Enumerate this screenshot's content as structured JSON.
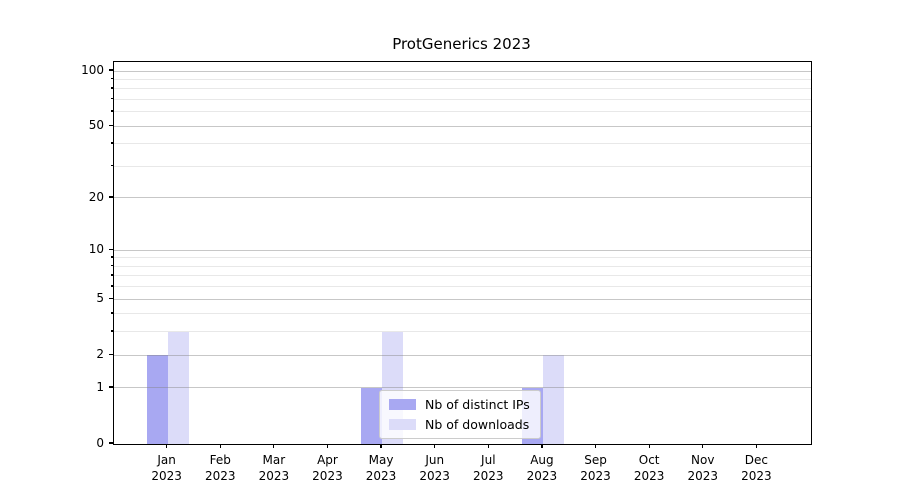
{
  "title": "ProtGenerics 2023",
  "chart_data": {
    "type": "bar",
    "title": "ProtGenerics 2023",
    "categories": [
      "Jan",
      "Feb",
      "Mar",
      "Apr",
      "May",
      "Jun",
      "Jul",
      "Aug",
      "Sep",
      "Oct",
      "Nov",
      "Dec"
    ],
    "category_year": "2023",
    "series": [
      {
        "name": "Nb of distinct IPs",
        "color": "#a8a8f2",
        "values": [
          2,
          0,
          0,
          0,
          1,
          0,
          0,
          1,
          0,
          0,
          0,
          0
        ]
      },
      {
        "name": "Nb of downloads",
        "color": "#dcdcf9",
        "values": [
          3,
          0,
          0,
          0,
          3,
          0,
          0,
          2,
          0,
          0,
          0,
          0
        ]
      }
    ],
    "yscale": "log1p",
    "yticks": [
      0,
      1,
      2,
      5,
      10,
      20,
      50,
      100
    ],
    "minor_yticks": [
      3,
      4,
      6,
      7,
      8,
      9,
      30,
      40,
      60,
      70,
      80,
      90
    ],
    "ylim_top_log1p": 2.053,
    "xlabel": "",
    "ylabel": "",
    "grid": true,
    "legend_position": "bottom-center"
  }
}
